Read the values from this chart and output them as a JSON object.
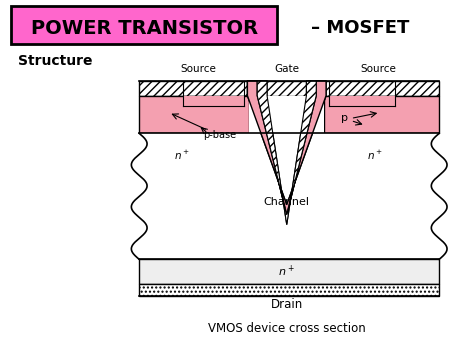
{
  "title1": "POWER TRANSISTOR",
  "title2": "– MOSFET",
  "subtitle": "Structure",
  "caption": "VMOS device cross section",
  "bg_color": "#ffffff",
  "title_box_color": "#ff66cc",
  "pink_color": "#f4a0b0",
  "gate_oxide_color": "#f4a0b0",
  "body_color": "#f8f8f8",
  "drain_body_color": "#f0f0f0",
  "labels": {
    "source_left": "Source",
    "gate": "Gate",
    "source_right": "Source",
    "p_base": "p-base",
    "p": "p",
    "channel": "Channel",
    "drain": "Drain",
    "caption": "VMOS device cross section"
  }
}
